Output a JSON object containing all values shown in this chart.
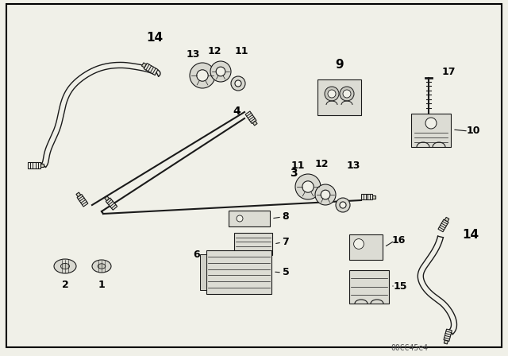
{
  "bg": "#f0f0e8",
  "lc": "#1a1a1a",
  "diagram_id": "00CC45e4",
  "figsize": [
    6.4,
    4.48
  ],
  "dpi": 100
}
